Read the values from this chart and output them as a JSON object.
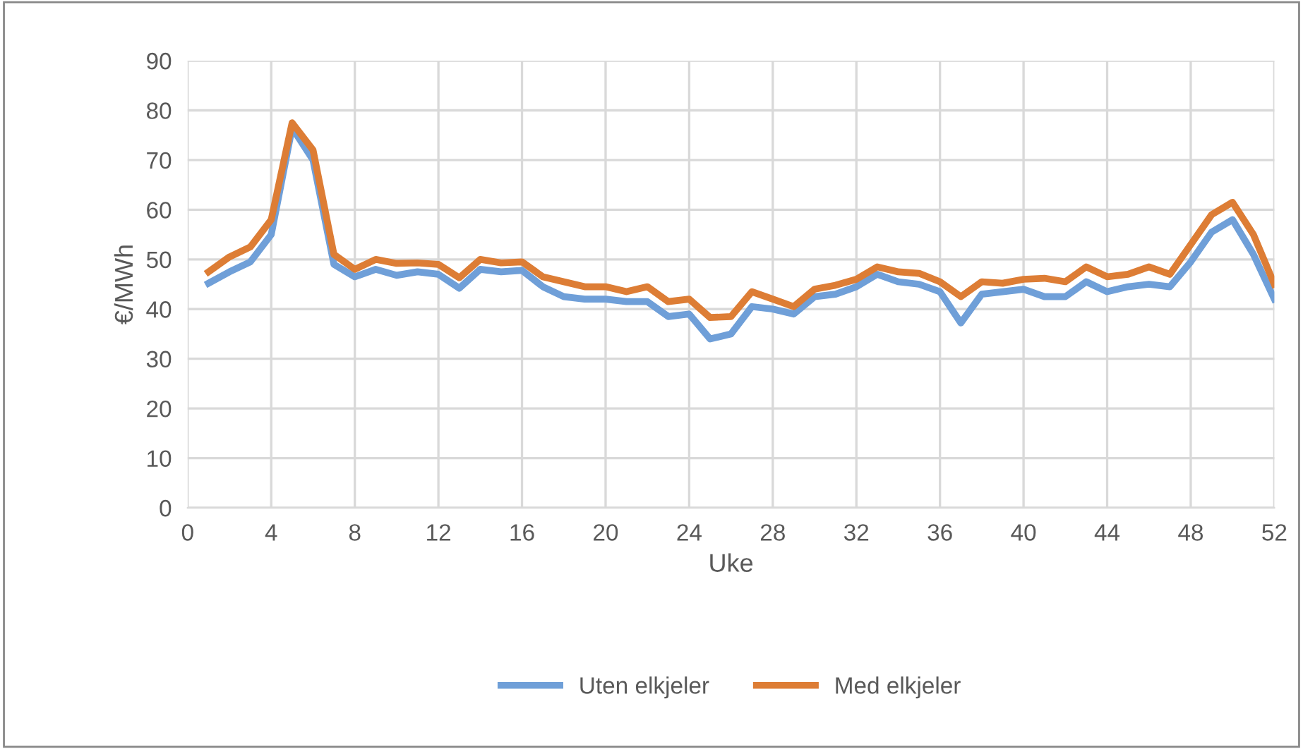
{
  "chart_data": {
    "type": "line",
    "xlabel": "Uke",
    "ylabel": "€/MWh",
    "x": [
      1,
      2,
      3,
      4,
      5,
      6,
      7,
      8,
      9,
      10,
      11,
      12,
      13,
      14,
      15,
      16,
      17,
      18,
      19,
      20,
      21,
      22,
      23,
      24,
      25,
      26,
      27,
      28,
      29,
      30,
      31,
      32,
      33,
      34,
      35,
      36,
      37,
      38,
      39,
      40,
      41,
      42,
      43,
      44,
      45,
      46,
      47,
      48,
      49,
      50,
      51,
      52
    ],
    "series": [
      {
        "name": "Uten elkjeler",
        "color": "#6f9fd8",
        "values": [
          45.2,
          47.5,
          49.5,
          55,
          76.5,
          70,
          49,
          46.5,
          48,
          46.8,
          47.5,
          47,
          44.2,
          48,
          47.5,
          47.8,
          44.5,
          42.5,
          42,
          42,
          41.5,
          41.5,
          38.5,
          39,
          34,
          35,
          40.5,
          40,
          39,
          42.5,
          43,
          44.5,
          47,
          45.5,
          45,
          43.5,
          37.2,
          43,
          43.5,
          44,
          42.5,
          42.5,
          45.5,
          43.5,
          44.5,
          45,
          44.5,
          49.5,
          55.5,
          58,
          51,
          42
        ]
      },
      {
        "name": "Med elkjeler",
        "color": "#dd7d35",
        "values": [
          47.5,
          50.5,
          52.5,
          58,
          77.5,
          72,
          51,
          48,
          50,
          49.2,
          49.3,
          49,
          46.3,
          50,
          49.3,
          49.5,
          46.5,
          45.5,
          44.5,
          44.5,
          43.5,
          44.5,
          41.5,
          42,
          38.3,
          38.5,
          43.5,
          42,
          40.5,
          44,
          44.8,
          46,
          48.5,
          47.5,
          47.2,
          45.5,
          42.5,
          45.5,
          45.2,
          46,
          46.2,
          45.5,
          48.5,
          46.5,
          47,
          48.5,
          47,
          53,
          59,
          61.5,
          55,
          45
        ]
      }
    ],
    "xlim": [
      0,
      52
    ],
    "xticks": [
      0,
      4,
      8,
      12,
      16,
      20,
      24,
      28,
      32,
      36,
      40,
      44,
      48,
      52
    ],
    "ylim": [
      0,
      90
    ],
    "yticks": [
      0,
      10,
      20,
      30,
      40,
      50,
      60,
      70,
      80,
      90
    ],
    "grid": true,
    "legend": "bottom",
    "marker": "none",
    "line_style": "solid"
  }
}
